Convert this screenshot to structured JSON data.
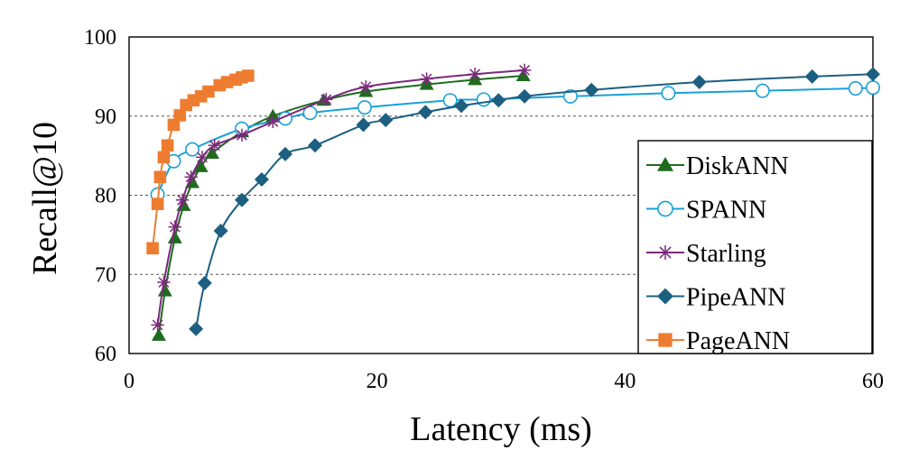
{
  "chart_data": {
    "type": "line",
    "title": "",
    "xlabel": "Latency (ms)",
    "ylabel": "Recall@10",
    "xlim": [
      0,
      60
    ],
    "ylim": [
      60,
      100
    ],
    "xticks": [
      0,
      20,
      40,
      60
    ],
    "yticks": [
      60,
      70,
      80,
      90,
      100
    ],
    "grid": "horizontal-dashed",
    "legend_position": "bottom-right",
    "series": [
      {
        "name": "DiskANN",
        "marker": "triangle",
        "color": "#1e6b1e",
        "points": [
          [
            2.4,
            62.3
          ],
          [
            2.9,
            67.9
          ],
          [
            3.7,
            74.6
          ],
          [
            4.4,
            78.7
          ],
          [
            5.1,
            81.6
          ],
          [
            5.8,
            83.6
          ],
          [
            6.7,
            85.3
          ],
          [
            9.1,
            88.0
          ],
          [
            11.6,
            90.0
          ],
          [
            15.7,
            92.0
          ],
          [
            19.1,
            93.1
          ],
          [
            24.0,
            94.0
          ],
          [
            27.9,
            94.6
          ],
          [
            31.8,
            95.1
          ]
        ]
      },
      {
        "name": "SPANN",
        "marker": "circle-open",
        "color": "#1aa0d8",
        "points": [
          [
            2.3,
            80.1
          ],
          [
            3.6,
            84.3
          ],
          [
            5.1,
            85.8
          ],
          [
            9.1,
            88.4
          ],
          [
            12.6,
            89.7
          ],
          [
            14.6,
            90.4
          ],
          [
            19.0,
            91.1
          ],
          [
            25.9,
            92.0
          ],
          [
            28.6,
            92.1
          ],
          [
            35.6,
            92.5
          ],
          [
            43.5,
            92.9
          ],
          [
            51.1,
            93.2
          ],
          [
            58.6,
            93.5
          ],
          [
            60.0,
            93.6
          ]
        ]
      },
      {
        "name": "Starling",
        "marker": "star",
        "color": "#7b2a7b",
        "points": [
          [
            2.3,
            63.6
          ],
          [
            2.8,
            69.0
          ],
          [
            3.7,
            76.0
          ],
          [
            4.3,
            79.4
          ],
          [
            5.0,
            82.3
          ],
          [
            5.9,
            84.8
          ],
          [
            6.9,
            86.3
          ],
          [
            9.1,
            87.6
          ],
          [
            11.6,
            89.3
          ],
          [
            15.9,
            92.1
          ],
          [
            19.1,
            93.7
          ],
          [
            24.0,
            94.7
          ],
          [
            27.9,
            95.3
          ],
          [
            31.9,
            95.8
          ]
        ]
      },
      {
        "name": "PipeANN",
        "marker": "diamond",
        "color": "#1c5f80",
        "points": [
          [
            5.4,
            63.1
          ],
          [
            6.1,
            68.9
          ],
          [
            7.4,
            75.5
          ],
          [
            9.1,
            79.4
          ],
          [
            10.7,
            82.0
          ],
          [
            12.6,
            85.2
          ],
          [
            15.0,
            86.3
          ],
          [
            18.9,
            88.9
          ],
          [
            20.7,
            89.5
          ],
          [
            23.9,
            90.5
          ],
          [
            26.8,
            91.3
          ],
          [
            29.8,
            92.0
          ],
          [
            31.9,
            92.5
          ],
          [
            37.3,
            93.3
          ],
          [
            46.0,
            94.3
          ],
          [
            55.1,
            95.0
          ],
          [
            60.0,
            95.3
          ]
        ]
      },
      {
        "name": "PageANN",
        "marker": "square",
        "color": "#ee7c30",
        "points": [
          [
            1.9,
            73.3
          ],
          [
            2.3,
            78.9
          ],
          [
            2.5,
            82.3
          ],
          [
            2.8,
            84.8
          ],
          [
            3.1,
            86.3
          ],
          [
            3.6,
            88.9
          ],
          [
            4.1,
            90.1
          ],
          [
            4.6,
            91.4
          ],
          [
            5.2,
            92.0
          ],
          [
            5.8,
            92.5
          ],
          [
            6.4,
            93.1
          ],
          [
            7.3,
            93.9
          ],
          [
            7.9,
            94.3
          ],
          [
            8.6,
            94.6
          ],
          [
            9.1,
            94.9
          ],
          [
            9.6,
            95.1
          ]
        ]
      }
    ]
  }
}
